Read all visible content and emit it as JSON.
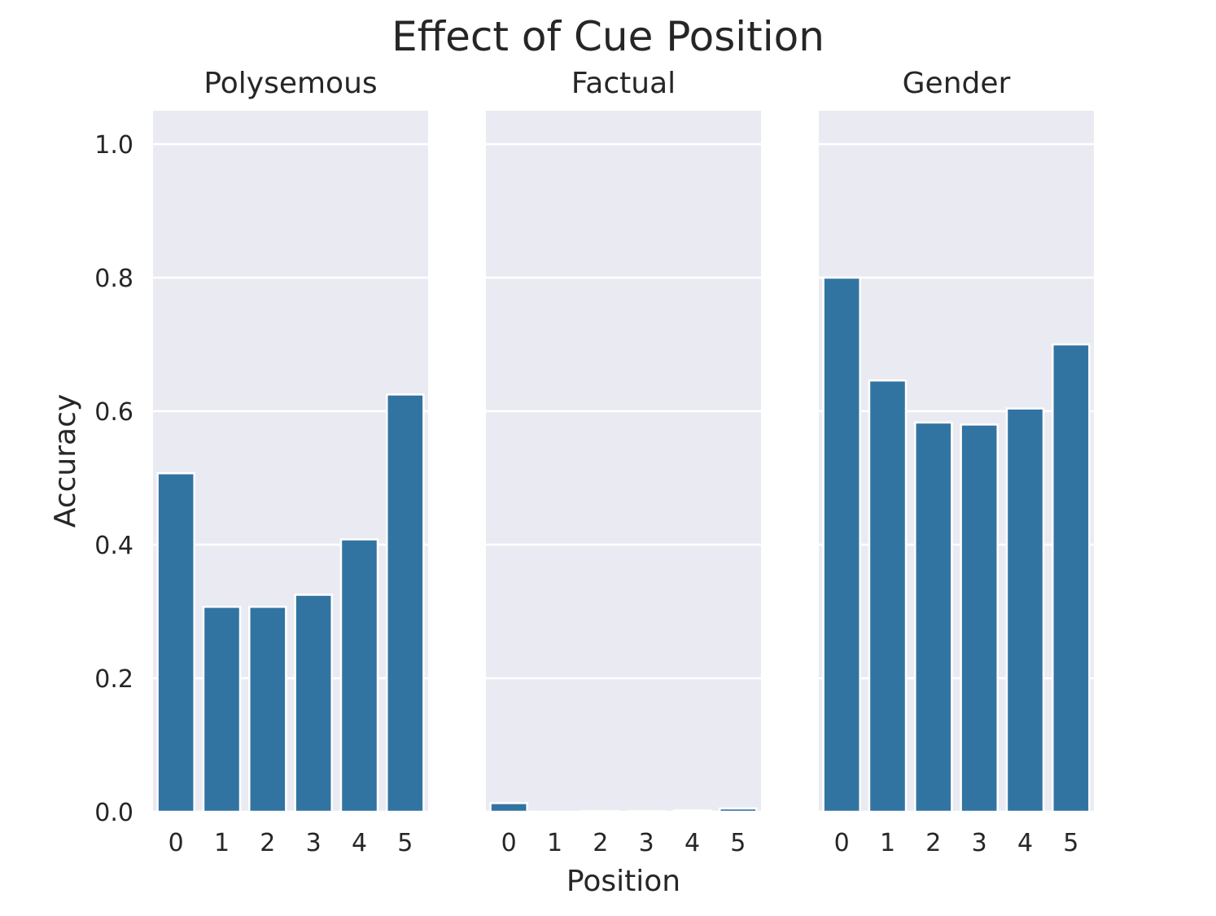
{
  "chart_data": {
    "type": "bar",
    "title": "Effect of Cue Position",
    "xlabel": "Position",
    "ylabel": "Accuracy",
    "ylim": [
      0,
      1.05
    ],
    "yticks": [
      0.0,
      0.2,
      0.4,
      0.6,
      0.8,
      1.0
    ],
    "ytick_labels": [
      "0.0",
      "0.2",
      "0.4",
      "0.6",
      "0.8",
      "1.0"
    ],
    "categories": [
      "0",
      "1",
      "2",
      "3",
      "4",
      "5"
    ],
    "bar_color": "#3274a1",
    "background_color": "#eaeaf2",
    "grid": true,
    "panels": [
      {
        "title": "Polysemous",
        "values": [
          0.507,
          0.307,
          0.307,
          0.325,
          0.408,
          0.625
        ]
      },
      {
        "title": "Factual",
        "values": [
          0.013,
          0.0,
          0.001,
          0.001,
          0.002,
          0.005
        ]
      },
      {
        "title": "Gender",
        "values": [
          0.8,
          0.646,
          0.583,
          0.58,
          0.604,
          0.7
        ]
      }
    ]
  }
}
